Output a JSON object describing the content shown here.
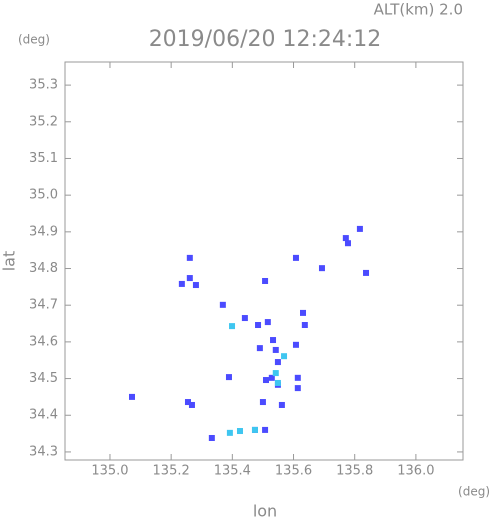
{
  "chart_data": {
    "type": "scatter",
    "title": "2019/06/20 12:24:12",
    "annotation": "ALT(km) 2.0",
    "y_unit": "(deg)",
    "x_unit": "(deg)",
    "x_label": "lon",
    "y_label": "lat",
    "xlim": [
      134.853,
      136.154
    ],
    "ylim": [
      34.278,
      35.363
    ],
    "xticks": [
      {
        "value": 135.0,
        "label": "135.0"
      },
      135.2,
      135.4,
      135.6,
      135.8,
      {
        "value": 136.0,
        "label": "136.0"
      }
    ],
    "yticks": [
      34.3,
      34.4,
      34.5,
      34.6,
      34.7,
      34.8,
      34.9,
      {
        "value": 35.0,
        "label": "35.0"
      },
      35.1,
      35.2,
      35.3
    ],
    "series": [
      {
        "color": "#4b4bff",
        "x": [
          135.771,
          135.778,
          135.817,
          135.837,
          135.693,
          135.608,
          135.261,
          135.235,
          135.281,
          135.261,
          135.507,
          135.369,
          135.441,
          135.484,
          135.516,
          135.631,
          135.637,
          135.533,
          135.542,
          135.549,
          135.608,
          135.529,
          135.549,
          135.51,
          135.614,
          135.614,
          135.562,
          135.5,
          135.389,
          135.49,
          135.255,
          135.268,
          135.072,
          135.333,
          135.474,
          135.507
        ],
        "values": [
          34.883,
          34.869,
          34.908,
          34.788,
          34.801,
          34.829,
          34.829,
          34.758,
          34.755,
          34.774,
          34.766,
          34.701,
          34.665,
          34.646,
          34.654,
          34.679,
          34.646,
          34.605,
          34.578,
          34.545,
          34.592,
          34.502,
          34.483,
          34.496,
          34.502,
          34.474,
          34.428,
          34.436,
          34.504,
          34.583,
          34.436,
          34.428,
          34.45,
          34.338,
          34.36,
          34.36
        ]
      },
      {
        "color": "#3fc6f0",
        "x": [
          135.392,
          135.425,
          135.474,
          135.549,
          135.569,
          135.399,
          135.542
        ],
        "values": [
          34.352,
          34.357,
          34.36,
          34.488,
          34.561,
          34.643,
          34.515
        ]
      }
    ]
  }
}
